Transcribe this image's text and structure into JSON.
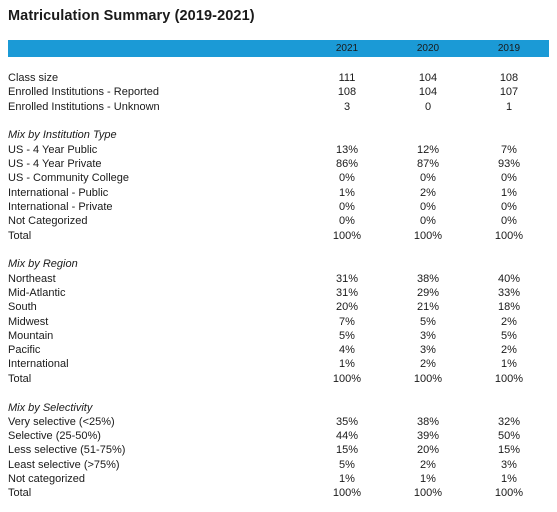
{
  "title": "Matriculation Summary (2019-2021)",
  "columns": [
    "2021",
    "2020",
    "2019"
  ],
  "colors": {
    "header_bar": "#1b9ad6"
  },
  "summary": [
    {
      "label": "Class size",
      "values": [
        "111",
        "104",
        "108"
      ]
    },
    {
      "label": "Enrolled Institutions - Reported",
      "values": [
        "108",
        "104",
        "107"
      ]
    },
    {
      "label": "Enrolled Institutions - Unknown",
      "values": [
        "3",
        "0",
        "1"
      ]
    }
  ],
  "sections": [
    {
      "title": "Mix by Institution Type",
      "rows": [
        {
          "label": "US - 4 Year Public",
          "values": [
            "13%",
            "12%",
            "7%"
          ]
        },
        {
          "label": "US - 4 Year Private",
          "values": [
            "86%",
            "87%",
            "93%"
          ]
        },
        {
          "label": "US - Community College",
          "values": [
            "0%",
            "0%",
            "0%"
          ]
        },
        {
          "label": "International - Public",
          "values": [
            "1%",
            "2%",
            "1%"
          ]
        },
        {
          "label": "International - Private",
          "values": [
            "0%",
            "0%",
            "0%"
          ]
        },
        {
          "label": "Not Categorized",
          "values": [
            "0%",
            "0%",
            "0%"
          ]
        },
        {
          "label": "Total",
          "values": [
            "100%",
            "100%",
            "100%"
          ]
        }
      ]
    },
    {
      "title": "Mix by Region",
      "rows": [
        {
          "label": "Northeast",
          "values": [
            "31%",
            "38%",
            "40%"
          ]
        },
        {
          "label": "Mid-Atlantic",
          "values": [
            "31%",
            "29%",
            "33%"
          ]
        },
        {
          "label": "South",
          "values": [
            "20%",
            "21%",
            "18%"
          ]
        },
        {
          "label": "Midwest",
          "values": [
            "7%",
            "5%",
            "2%"
          ]
        },
        {
          "label": "Mountain",
          "values": [
            "5%",
            "3%",
            "5%"
          ]
        },
        {
          "label": "Pacific",
          "values": [
            "4%",
            "3%",
            "2%"
          ]
        },
        {
          "label": "International",
          "values": [
            "1%",
            "2%",
            "1%"
          ]
        },
        {
          "label": "Total",
          "values": [
            "100%",
            "100%",
            "100%"
          ]
        }
      ]
    },
    {
      "title": "Mix by Selectivity",
      "rows": [
        {
          "label": "Very selective (<25%)",
          "values": [
            "35%",
            "38%",
            "32%"
          ]
        },
        {
          "label": "Selective (25-50%)",
          "values": [
            "44%",
            "39%",
            "50%"
          ]
        },
        {
          "label": "Less selective (51-75%)",
          "values": [
            "15%",
            "20%",
            "15%"
          ]
        },
        {
          "label": "Least selective (>75%)",
          "values": [
            "5%",
            "2%",
            "3%"
          ]
        },
        {
          "label": "Not categorized",
          "values": [
            "1%",
            "1%",
            "1%"
          ]
        },
        {
          "label": "Total",
          "values": [
            "100%",
            "100%",
            "100%"
          ]
        }
      ]
    }
  ]
}
